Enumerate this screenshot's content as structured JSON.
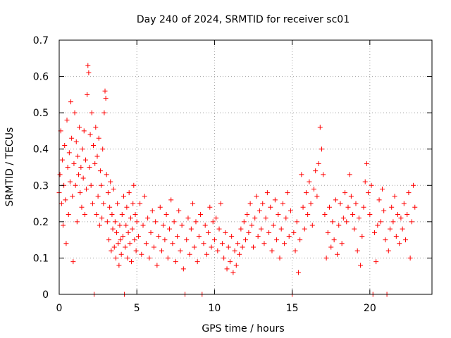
{
  "chart_data": {
    "type": "scatter",
    "title": "Day 240 of 2024, SRMTID for receiver sc01",
    "xlabel": "GPS time / hours",
    "ylabel": "SRMTID / TECUs",
    "xlim": [
      0,
      24
    ],
    "ylim": [
      0,
      0.7
    ],
    "xticks": [
      0,
      5,
      10,
      15,
      20
    ],
    "xtick_labels": [
      "0",
      "5",
      "10",
      "15",
      "20"
    ],
    "yticks": [
      0,
      0.1,
      0.2,
      0.3,
      0.4,
      0.5,
      0.6,
      0.7
    ],
    "ytick_labels": [
      "0",
      "0.1",
      "0.2",
      "0.3",
      "0.4",
      "0.5",
      "0.6",
      "0.7"
    ],
    "grid": true,
    "marker": "+",
    "color": "#ff0000",
    "series": [
      {
        "name": "SRMTID",
        "points": [
          [
            0.0,
            0.28
          ],
          [
            0.05,
            0.33
          ],
          [
            0.1,
            0.45
          ],
          [
            0.15,
            0.25
          ],
          [
            0.2,
            0.37
          ],
          [
            0.25,
            0.19
          ],
          [
            0.3,
            0.3
          ],
          [
            0.35,
            0.41
          ],
          [
            0.4,
            0.26
          ],
          [
            0.45,
            0.14
          ],
          [
            0.5,
            0.48
          ],
          [
            0.55,
            0.35
          ],
          [
            0.6,
            0.22
          ],
          [
            0.65,
            0.39
          ],
          [
            0.7,
            0.31
          ],
          [
            0.75,
            0.53
          ],
          [
            0.8,
            0.43
          ],
          [
            0.85,
            0.27
          ],
          [
            0.9,
            0.09
          ],
          [
            0.95,
            0.36
          ],
          [
            1.0,
            0.5
          ],
          [
            1.05,
            0.3
          ],
          [
            1.1,
            0.42
          ],
          [
            1.15,
            0.2
          ],
          [
            1.2,
            0.38
          ],
          [
            1.25,
            0.33
          ],
          [
            1.3,
            0.46
          ],
          [
            1.35,
            0.28
          ],
          [
            1.4,
            0.35
          ],
          [
            1.45,
            0.24
          ],
          [
            1.5,
            0.4
          ],
          [
            1.55,
            0.32
          ],
          [
            1.6,
            0.45
          ],
          [
            1.65,
            0.22
          ],
          [
            1.7,
            0.37
          ],
          [
            1.75,
            0.29
          ],
          [
            1.8,
            0.55
          ],
          [
            1.85,
            0.63
          ],
          [
            1.9,
            0.61
          ],
          [
            1.95,
            0.35
          ],
          [
            2.0,
            0.44
          ],
          [
            2.05,
            0.3
          ],
          [
            2.1,
            0.5
          ],
          [
            2.15,
            0.25
          ],
          [
            2.2,
            0.41
          ],
          [
            2.25,
            0.0
          ],
          [
            2.3,
            0.36
          ],
          [
            2.35,
            0.46
          ],
          [
            2.4,
            0.22
          ],
          [
            2.45,
            0.38
          ],
          [
            2.5,
            0.27
          ],
          [
            2.55,
            0.43
          ],
          [
            2.6,
            0.19
          ],
          [
            2.65,
            0.34
          ],
          [
            2.7,
            0.3
          ],
          [
            2.75,
            0.21
          ],
          [
            2.8,
            0.4
          ],
          [
            2.85,
            0.25
          ],
          [
            2.9,
            0.5
          ],
          [
            2.95,
            0.56
          ],
          [
            3.0,
            0.54
          ],
          [
            3.05,
            0.33
          ],
          [
            3.1,
            0.2
          ],
          [
            3.15,
            0.28
          ],
          [
            3.2,
            0.15
          ],
          [
            3.25,
            0.24
          ],
          [
            3.3,
            0.31
          ],
          [
            3.35,
            0.12
          ],
          [
            3.4,
            0.22
          ],
          [
            3.45,
            0.18
          ],
          [
            3.5,
            0.29
          ],
          [
            3.55,
            0.13
          ],
          [
            3.6,
            0.2
          ],
          [
            3.65,
            0.1
          ],
          [
            3.7,
            0.17
          ],
          [
            3.75,
            0.25
          ],
          [
            3.8,
            0.14
          ],
          [
            3.85,
            0.08
          ],
          [
            3.9,
            0.19
          ],
          [
            3.95,
            0.15
          ],
          [
            4.0,
            0.11
          ],
          [
            4.05,
            0.22
          ],
          [
            4.1,
            0.16
          ],
          [
            4.15,
            0.27
          ],
          [
            4.2,
            0.0
          ],
          [
            4.25,
            0.13
          ],
          [
            4.3,
            0.19
          ],
          [
            4.35,
            0.24
          ],
          [
            4.4,
            0.1
          ],
          [
            4.45,
            0.17
          ],
          [
            4.5,
            0.28
          ],
          [
            4.55,
            0.14
          ],
          [
            4.6,
            0.21
          ],
          [
            4.65,
            0.09
          ],
          [
            4.7,
            0.18
          ],
          [
            4.75,
            0.25
          ],
          [
            4.8,
            0.3
          ],
          [
            4.85,
            0.15
          ],
          [
            4.9,
            0.22
          ],
          [
            4.95,
            0.12
          ],
          [
            5.0,
            0.2
          ],
          [
            5.1,
            0.16
          ],
          [
            5.2,
            0.25
          ],
          [
            5.3,
            0.11
          ],
          [
            5.4,
            0.19
          ],
          [
            5.5,
            0.27
          ],
          [
            5.6,
            0.14
          ],
          [
            5.7,
            0.21
          ],
          [
            5.8,
            0.1
          ],
          [
            5.9,
            0.17
          ],
          [
            6.0,
            0.23
          ],
          [
            6.1,
            0.13
          ],
          [
            6.2,
            0.2
          ],
          [
            6.3,
            0.08
          ],
          [
            6.4,
            0.16
          ],
          [
            6.5,
            0.24
          ],
          [
            6.6,
            0.12
          ],
          [
            6.7,
            0.19
          ],
          [
            6.8,
            0.15
          ],
          [
            6.9,
            0.22
          ],
          [
            7.0,
            0.1
          ],
          [
            7.1,
            0.18
          ],
          [
            7.2,
            0.26
          ],
          [
            7.3,
            0.14
          ],
          [
            7.4,
            0.2
          ],
          [
            7.5,
            0.09
          ],
          [
            7.6,
            0.16
          ],
          [
            7.7,
            0.23
          ],
          [
            7.8,
            0.12
          ],
          [
            7.9,
            0.19
          ],
          [
            8.0,
            0.07
          ],
          [
            8.1,
            0.0
          ],
          [
            8.2,
            0.15
          ],
          [
            8.3,
            0.21
          ],
          [
            8.4,
            0.11
          ],
          [
            8.5,
            0.18
          ],
          [
            8.6,
            0.25
          ],
          [
            8.7,
            0.13
          ],
          [
            8.8,
            0.2
          ],
          [
            8.9,
            0.09
          ],
          [
            9.0,
            0.16
          ],
          [
            9.1,
            0.22
          ],
          [
            9.2,
            0.0
          ],
          [
            9.3,
            0.14
          ],
          [
            9.4,
            0.19
          ],
          [
            9.5,
            0.11
          ],
          [
            9.6,
            0.17
          ],
          [
            9.7,
            0.24
          ],
          [
            9.8,
            0.13
          ],
          [
            9.9,
            0.2
          ],
          [
            10.0,
            0.15
          ],
          [
            10.1,
            0.21
          ],
          [
            10.2,
            0.12
          ],
          [
            10.3,
            0.18
          ],
          [
            10.4,
            0.25
          ],
          [
            10.5,
            0.14
          ],
          [
            10.6,
            0.1
          ],
          [
            10.7,
            0.17
          ],
          [
            10.8,
            0.07
          ],
          [
            10.9,
            0.13
          ],
          [
            11.0,
            0.09
          ],
          [
            11.1,
            0.16
          ],
          [
            11.2,
            0.06
          ],
          [
            11.3,
            0.12
          ],
          [
            11.4,
            0.08
          ],
          [
            11.5,
            0.14
          ],
          [
            11.6,
            0.11
          ],
          [
            11.7,
            0.18
          ],
          [
            11.8,
            0.13
          ],
          [
            11.9,
            0.2
          ],
          [
            12.0,
            0.15
          ],
          [
            12.1,
            0.22
          ],
          [
            12.2,
            0.17
          ],
          [
            12.3,
            0.25
          ],
          [
            12.4,
            0.19
          ],
          [
            12.5,
            0.13
          ],
          [
            12.6,
            0.21
          ],
          [
            12.7,
            0.27
          ],
          [
            12.8,
            0.16
          ],
          [
            12.9,
            0.23
          ],
          [
            13.0,
            0.18
          ],
          [
            13.1,
            0.25
          ],
          [
            13.2,
            0.14
          ],
          [
            13.3,
            0.21
          ],
          [
            13.4,
            0.28
          ],
          [
            13.5,
            0.17
          ],
          [
            13.6,
            0.24
          ],
          [
            13.7,
            0.12
          ],
          [
            13.8,
            0.19
          ],
          [
            13.9,
            0.26
          ],
          [
            14.0,
            0.15
          ],
          [
            14.1,
            0.22
          ],
          [
            14.2,
            0.1
          ],
          [
            14.3,
            0.18
          ],
          [
            14.4,
            0.25
          ],
          [
            14.5,
            0.14
          ],
          [
            14.6,
            0.21
          ],
          [
            14.7,
            0.28
          ],
          [
            14.8,
            0.16
          ],
          [
            14.9,
            0.23
          ],
          [
            15.0,
            0.0
          ],
          [
            15.1,
            0.17
          ],
          [
            15.2,
            0.12
          ],
          [
            15.3,
            0.2
          ],
          [
            15.4,
            0.06
          ],
          [
            15.5,
            0.15
          ],
          [
            15.6,
            0.33
          ],
          [
            15.7,
            0.24
          ],
          [
            15.8,
            0.18
          ],
          [
            15.9,
            0.28
          ],
          [
            16.0,
            0.22
          ],
          [
            16.1,
            0.31
          ],
          [
            16.2,
            0.25
          ],
          [
            16.3,
            0.19
          ],
          [
            16.4,
            0.29
          ],
          [
            16.5,
            0.34
          ],
          [
            16.6,
            0.27
          ],
          [
            16.7,
            0.36
          ],
          [
            16.8,
            0.46
          ],
          [
            16.9,
            0.4
          ],
          [
            17.0,
            0.33
          ],
          [
            17.1,
            0.22
          ],
          [
            17.2,
            0.1
          ],
          [
            17.3,
            0.17
          ],
          [
            17.4,
            0.24
          ],
          [
            17.5,
            0.13
          ],
          [
            17.6,
            0.2
          ],
          [
            17.7,
            0.15
          ],
          [
            17.8,
            0.26
          ],
          [
            17.9,
            0.11
          ],
          [
            18.0,
            0.19
          ],
          [
            18.1,
            0.25
          ],
          [
            18.2,
            0.14
          ],
          [
            18.3,
            0.21
          ],
          [
            18.4,
            0.28
          ],
          [
            18.5,
            0.2
          ],
          [
            18.6,
            0.24
          ],
          [
            18.7,
            0.33
          ],
          [
            18.8,
            0.27
          ],
          [
            18.9,
            0.22
          ],
          [
            19.0,
            0.18
          ],
          [
            19.1,
            0.25
          ],
          [
            19.2,
            0.12
          ],
          [
            19.3,
            0.21
          ],
          [
            19.4,
            0.08
          ],
          [
            19.5,
            0.16
          ],
          [
            19.6,
            0.24
          ],
          [
            19.7,
            0.31
          ],
          [
            19.8,
            0.36
          ],
          [
            19.9,
            0.28
          ],
          [
            20.0,
            0.22
          ],
          [
            20.1,
            0.3
          ],
          [
            20.2,
            0.0
          ],
          [
            20.3,
            0.17
          ],
          [
            20.4,
            0.09
          ],
          [
            20.5,
            0.19
          ],
          [
            20.6,
            0.26
          ],
          [
            20.7,
            0.2
          ],
          [
            20.8,
            0.29
          ],
          [
            20.9,
            0.23
          ],
          [
            21.0,
            0.15
          ],
          [
            21.1,
            0.0
          ],
          [
            21.2,
            0.12
          ],
          [
            21.3,
            0.18
          ],
          [
            21.4,
            0.24
          ],
          [
            21.5,
            0.2
          ],
          [
            21.6,
            0.27
          ],
          [
            21.7,
            0.16
          ],
          [
            21.8,
            0.22
          ],
          [
            21.9,
            0.14
          ],
          [
            22.0,
            0.21
          ],
          [
            22.1,
            0.18
          ],
          [
            22.2,
            0.25
          ],
          [
            22.3,
            0.15
          ],
          [
            22.4,
            0.22
          ],
          [
            22.5,
            0.28
          ],
          [
            22.6,
            0.1
          ],
          [
            22.7,
            0.2
          ],
          [
            22.8,
            0.3
          ],
          [
            22.9,
            0.24
          ]
        ]
      }
    ]
  }
}
